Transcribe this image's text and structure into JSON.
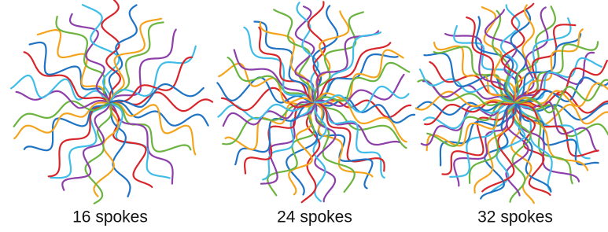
{
  "panels": [
    {
      "label": "16 spokes"
    },
    {
      "label": "24 spokes"
    },
    {
      "label": "32 spokes"
    }
  ]
}
